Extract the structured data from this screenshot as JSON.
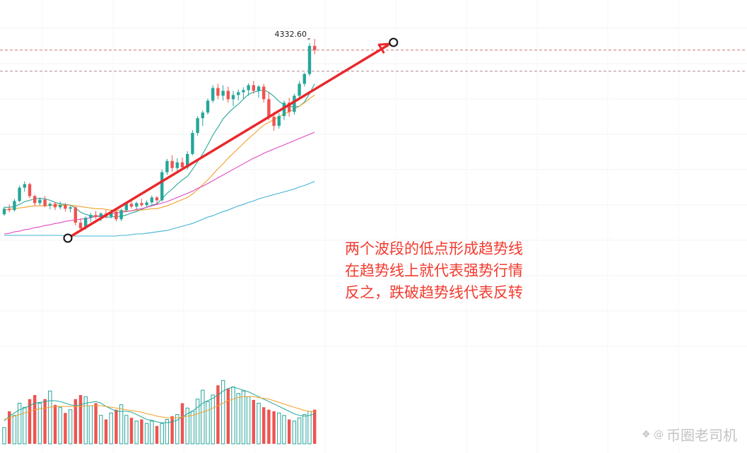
{
  "chart_data": {
    "type": "candlestick",
    "price_label": "4332.60",
    "annotation_lines": [
      "两个波段的低点形成趋势线",
      "在趋势线上就代表强势行情",
      "反之，跌破趋势线代表反转"
    ],
    "candles": [
      [
        4086,
        4097,
        4084,
        4094
      ],
      [
        4094,
        4100,
        4089,
        4092
      ],
      [
        4092,
        4108,
        4090,
        4105
      ],
      [
        4105,
        4127,
        4103,
        4124
      ],
      [
        4124,
        4133,
        4118,
        4129
      ],
      [
        4129,
        4131,
        4109,
        4112
      ],
      [
        4112,
        4114,
        4098,
        4102
      ],
      [
        4102,
        4110,
        4099,
        4107
      ],
      [
        4107,
        4112,
        4096,
        4098
      ],
      [
        4098,
        4103,
        4093,
        4101
      ],
      [
        4101,
        4104,
        4092,
        4096
      ],
      [
        4096,
        4104,
        4093,
        4099
      ],
      [
        4099,
        4102,
        4090,
        4094
      ],
      [
        4094,
        4099,
        4089,
        4096
      ],
      [
        4096,
        4097,
        4070,
        4074
      ],
      [
        4074,
        4080,
        4062,
        4066
      ],
      [
        4066,
        4083,
        4064,
        4081
      ],
      [
        4081,
        4088,
        4075,
        4085
      ],
      [
        4085,
        4091,
        4079,
        4082
      ],
      [
        4082,
        4089,
        4076,
        4087
      ],
      [
        4087,
        4092,
        4080,
        4083
      ],
      [
        4083,
        4092,
        4080,
        4090
      ],
      [
        4090,
        4091,
        4076,
        4079
      ],
      [
        4079,
        4094,
        4076,
        4092
      ],
      [
        4092,
        4104,
        4089,
        4101
      ],
      [
        4101,
        4108,
        4094,
        4097
      ],
      [
        4097,
        4104,
        4092,
        4102
      ],
      [
        4102,
        4108,
        4097,
        4099
      ],
      [
        4099,
        4106,
        4096,
        4103
      ],
      [
        4103,
        4113,
        4100,
        4110
      ],
      [
        4110,
        4112,
        4100,
        4106
      ],
      [
        4106,
        4150,
        4104,
        4146
      ],
      [
        4146,
        4165,
        4142,
        4162
      ],
      [
        4162,
        4170,
        4147,
        4152
      ],
      [
        4152,
        4166,
        4148,
        4160
      ],
      [
        4160,
        4167,
        4150,
        4153
      ],
      [
        4153,
        4176,
        4150,
        4172
      ],
      [
        4172,
        4206,
        4170,
        4202
      ],
      [
        4202,
        4226,
        4198,
        4223
      ],
      [
        4223,
        4234,
        4212,
        4231
      ],
      [
        4231,
        4251,
        4228,
        4248
      ],
      [
        4248,
        4270,
        4245,
        4266
      ],
      [
        4266,
        4272,
        4250,
        4255
      ],
      [
        4255,
        4270,
        4248,
        4262
      ],
      [
        4262,
        4268,
        4245,
        4250
      ],
      [
        4250,
        4262,
        4240,
        4256
      ],
      [
        4256,
        4264,
        4248,
        4260
      ],
      [
        4260,
        4267,
        4250,
        4263
      ],
      [
        4263,
        4273,
        4255,
        4270
      ],
      [
        4270,
        4276,
        4258,
        4262
      ],
      [
        4262,
        4270,
        4252,
        4268
      ],
      [
        4268,
        4272,
        4245,
        4250
      ],
      [
        4250,
        4260,
        4220,
        4225
      ],
      [
        4225,
        4232,
        4205,
        4212
      ],
      [
        4212,
        4230,
        4208,
        4226
      ],
      [
        4226,
        4248,
        4220,
        4245
      ],
      [
        4245,
        4252,
        4225,
        4232
      ],
      [
        4232,
        4258,
        4228,
        4255
      ],
      [
        4255,
        4276,
        4250,
        4272
      ],
      [
        4272,
        4288,
        4268,
        4286
      ],
      [
        4286,
        4330,
        4283,
        4326
      ],
      [
        4326,
        4336,
        4314,
        4320
      ]
    ],
    "ma_lines": [
      {
        "color": "#26a69a",
        "values": [
          4096,
          4096,
          4097,
          4100,
          4104,
          4106,
          4108,
          4109,
          4108,
          4106,
          4103,
          4101,
          4100,
          4099,
          4095,
          4089,
          4086,
          4084,
          4083,
          4083,
          4082,
          4082,
          4083,
          4083,
          4085,
          4088,
          4090,
          4093,
          4096,
          4099,
          4101,
          4108,
          4116,
          4122,
          4129,
          4135,
          4140,
          4150,
          4161,
          4172,
          4185,
          4199,
          4210,
          4222,
          4230,
          4237,
          4243,
          4250,
          4257,
          4260,
          4262,
          4263,
          4260,
          4254,
          4247,
          4242,
          4240,
          4239,
          4240,
          4246,
          4258,
          4272
        ]
      },
      {
        "color": "#f0a12a",
        "values": [
          4092,
          4093,
          4094,
          4095,
          4096,
          4097,
          4098,
          4098,
          4098,
          4099,
          4099,
          4099,
          4099,
          4099,
          4098,
          4097,
          4096,
          4095,
          4094,
          4094,
          4093,
          4092,
          4092,
          4091,
          4091,
          4091,
          4092,
          4092,
          4093,
          4094,
          4094,
          4096,
          4098,
          4101,
          4104,
          4107,
          4110,
          4115,
          4121,
          4128,
          4135,
          4143,
          4151,
          4158,
          4166,
          4173,
          4180,
          4187,
          4194,
          4200,
          4207,
          4213,
          4217,
          4221,
          4225,
          4229,
          4232,
          4236,
          4240,
          4245,
          4251,
          4256
        ]
      },
      {
        "color": "#e048c4",
        "values": [
          4058,
          4059,
          4061,
          4062,
          4064,
          4065,
          4067,
          4068,
          4070,
          4071,
          4073,
          4074,
          4076,
          4077,
          4078,
          4079,
          4080,
          4081,
          4083,
          4084,
          4085,
          4087,
          4088,
          4089,
          4090,
          4091,
          4093,
          4094,
          4096,
          4098,
          4100,
          4102,
          4104,
          4107,
          4110,
          4113,
          4116,
          4119,
          4123,
          4126,
          4130,
          4134,
          4138,
          4142,
          4146,
          4150,
          4154,
          4158,
          4162,
          4166,
          4169,
          4173,
          4176,
          4179,
          4182,
          4185,
          4188,
          4191,
          4194,
          4197,
          4200,
          4203
        ]
      },
      {
        "color": "#41b3d3",
        "values": [
          4056,
          4056,
          4056,
          4056,
          4056,
          4056,
          4056,
          4056,
          4056,
          4056,
          4056,
          4056,
          4055,
          4055,
          4055,
          4055,
          4055,
          4055,
          4055,
          4055,
          4055,
          4055,
          4055,
          4056,
          4056,
          4057,
          4058,
          4058,
          4059,
          4060,
          4061,
          4062,
          4063,
          4065,
          4067,
          4069,
          4071,
          4073,
          4076,
          4079,
          4082,
          4084,
          4087,
          4090,
          4092,
          4095,
          4098,
          4100,
          4103,
          4105,
          4108,
          4110,
          4112,
          4114,
          4116,
          4118,
          4120,
          4122,
          4125,
          4127,
          4130,
          4133
        ]
      }
    ],
    "trendline": {
      "start": {
        "i": 12.5,
        "p": 4052
      },
      "end": {
        "i": 76.5,
        "p": 4331
      }
    },
    "volume": {
      "values": [
        20,
        40,
        35,
        50,
        45,
        55,
        60,
        50,
        55,
        65,
        48,
        45,
        38,
        42,
        55,
        60,
        58,
        47,
        50,
        35,
        30,
        38,
        42,
        48,
        35,
        32,
        28,
        30,
        25,
        28,
        22,
        25,
        30,
        34,
        36,
        50,
        44,
        40,
        55,
        66,
        52,
        60,
        72,
        78,
        68,
        70,
        62,
        65,
        58,
        54,
        50,
        45,
        42,
        40,
        38,
        35,
        30,
        28,
        32,
        36,
        40,
        42
      ],
      "ma_short": [
        28,
        34,
        38,
        42,
        44,
        47,
        50,
        51,
        52,
        53,
        53,
        52,
        50,
        48,
        47,
        48,
        50,
        51,
        52,
        50,
        46,
        43,
        40,
        40,
        40,
        39,
        36,
        33,
        30,
        29,
        27,
        26,
        26,
        27,
        29,
        33,
        37,
        40,
        45,
        50,
        53,
        56,
        60,
        65,
        68,
        70,
        68,
        66,
        64,
        61,
        58,
        55,
        52,
        49,
        46,
        43,
        40,
        37,
        35,
        34,
        35,
        37
      ],
      "ma_long": [
        30,
        32,
        34,
        36,
        38,
        40,
        42,
        43,
        44,
        45,
        46,
        46,
        46,
        46,
        46,
        46,
        47,
        47,
        47,
        47,
        46,
        45,
        44,
        43,
        42,
        41,
        40,
        39,
        37,
        36,
        34,
        33,
        32,
        32,
        32,
        33,
        34,
        35,
        37,
        39,
        41,
        44,
        47,
        50,
        53,
        55,
        57,
        58,
        58,
        58,
        57,
        56,
        55,
        53,
        51,
        49,
        47,
        45,
        43,
        41,
        40,
        39
      ]
    },
    "watermark": "币圈老司机"
  }
}
